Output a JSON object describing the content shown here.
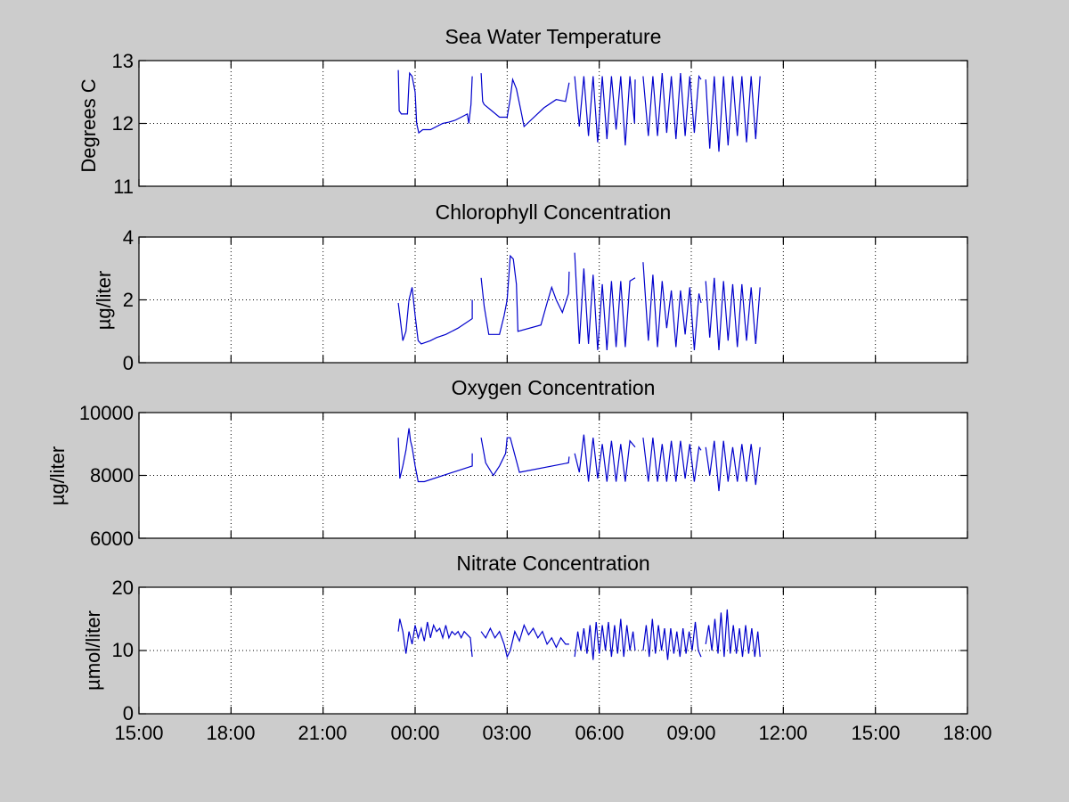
{
  "figure": {
    "background": "#cccccc",
    "axes_background": "#ffffff",
    "line_color": "#0000cc",
    "grid_color": "#000000"
  },
  "xaxis": {
    "tick_labels": [
      "15:00",
      "18:00",
      "21:00",
      "00:00",
      "03:00",
      "06:00",
      "09:00",
      "12:00",
      "15:00",
      "18:00"
    ],
    "tick_hours": [
      0,
      3,
      6,
      9,
      12,
      15,
      18,
      21,
      24,
      27
    ],
    "range_hours": [
      0,
      27
    ],
    "unit": "hours since 15:00"
  },
  "chart_data": [
    {
      "type": "line",
      "title": "Sea Water Temperature",
      "xlabel": "",
      "ylabel": "Degrees C",
      "ylim": [
        11,
        13
      ],
      "yticks": [
        "11",
        "12",
        "13"
      ],
      "ytick_values": [
        11,
        12,
        13
      ],
      "grid": true,
      "segments": [
        {
          "x": [
            8.45,
            8.48,
            8.55,
            8.75,
            8.8,
            8.82,
            8.9,
            9.0,
            9.05,
            9.12,
            9.25,
            9.3,
            9.5,
            9.9,
            10.1,
            10.3,
            10.5,
            10.7,
            10.75,
            10.82,
            10.86
          ],
          "y": [
            12.85,
            12.2,
            12.15,
            12.15,
            12.65,
            12.8,
            12.75,
            12.5,
            12.0,
            11.85,
            11.9,
            11.9,
            11.9,
            12.0,
            12.02,
            12.05,
            12.1,
            12.15,
            12.0,
            12.3,
            12.75
          ]
        },
        {
          "x": [
            11.15,
            11.2,
            11.25,
            11.5,
            11.75,
            12.0,
            12.1,
            12.18,
            12.3,
            12.45,
            12.55,
            13.2,
            13.6,
            13.9,
            14.02
          ],
          "y": [
            12.8,
            12.35,
            12.3,
            12.2,
            12.1,
            12.1,
            12.4,
            12.7,
            12.55,
            12.2,
            11.95,
            12.25,
            12.38,
            12.35,
            12.65
          ]
        },
        {
          "x": [
            14.2,
            14.35,
            14.5,
            14.65,
            14.8,
            14.95,
            15.1,
            15.25,
            15.4,
            15.55,
            15.7,
            15.85,
            16.0,
            16.15,
            16.17
          ],
          "y": [
            12.75,
            11.95,
            12.75,
            11.8,
            12.75,
            11.7,
            12.75,
            11.75,
            12.75,
            11.9,
            12.75,
            11.65,
            12.75,
            12.0,
            12.7
          ]
        },
        {
          "x": [
            16.43,
            16.6,
            16.75,
            16.9,
            17.05,
            17.2,
            17.35,
            17.5,
            17.65,
            17.8,
            17.95,
            18.1,
            18.25,
            18.32
          ],
          "y": [
            12.75,
            11.8,
            12.75,
            11.8,
            12.8,
            11.85,
            12.75,
            11.75,
            12.8,
            11.8,
            12.75,
            11.85,
            12.75,
            12.7
          ]
        },
        {
          "x": [
            18.47,
            18.6,
            18.75,
            18.9,
            19.05,
            19.2,
            19.35,
            19.5,
            19.65,
            19.8,
            19.95,
            20.1,
            20.24
          ],
          "y": [
            12.7,
            11.6,
            12.75,
            11.55,
            12.75,
            11.65,
            12.75,
            11.8,
            12.75,
            11.7,
            12.75,
            11.75,
            12.75
          ]
        }
      ]
    },
    {
      "type": "line",
      "title": "Chlorophyll Concentration",
      "xlabel": "",
      "ylabel": "µg/liter",
      "ylim": [
        0,
        4
      ],
      "yticks": [
        "0",
        "2",
        "4"
      ],
      "ytick_values": [
        0,
        2,
        4
      ],
      "grid": true,
      "segments": [
        {
          "x": [
            8.45,
            8.5,
            8.6,
            8.7,
            8.8,
            8.9,
            9.0,
            9.1,
            9.2,
            9.5,
            9.7,
            10.0,
            10.4,
            10.86,
            10.86
          ],
          "y": [
            1.9,
            1.5,
            0.7,
            1.0,
            2.0,
            2.4,
            1.5,
            0.7,
            0.6,
            0.7,
            0.8,
            0.9,
            1.1,
            1.4,
            2.0
          ]
        },
        {
          "x": [
            11.15,
            11.25,
            11.4,
            11.75,
            11.9,
            12.0,
            12.1,
            12.2,
            12.3,
            12.35,
            13.1,
            13.3,
            13.45,
            13.6,
            13.8,
            14.0,
            14.02
          ],
          "y": [
            2.7,
            1.8,
            0.9,
            0.9,
            1.5,
            2.0,
            3.4,
            3.3,
            2.5,
            1.0,
            1.2,
            1.9,
            2.4,
            2.0,
            1.6,
            2.2,
            2.9
          ]
        },
        {
          "x": [
            14.2,
            14.35,
            14.5,
            14.65,
            14.8,
            14.95,
            15.1,
            15.25,
            15.4,
            15.55,
            15.7,
            15.85,
            16.0,
            16.17
          ],
          "y": [
            3.5,
            0.6,
            3.0,
            0.6,
            2.8,
            0.4,
            2.5,
            0.4,
            2.6,
            0.5,
            2.6,
            0.5,
            2.6,
            2.7
          ]
        },
        {
          "x": [
            16.43,
            16.6,
            16.75,
            16.9,
            17.05,
            17.2,
            17.35,
            17.5,
            17.65,
            17.8,
            17.95,
            18.1,
            18.25,
            18.32
          ],
          "y": [
            3.2,
            0.7,
            2.8,
            0.5,
            2.6,
            1.1,
            2.3,
            0.5,
            2.3,
            0.9,
            2.4,
            0.4,
            2.2,
            1.9
          ]
        },
        {
          "x": [
            18.47,
            18.6,
            18.75,
            18.9,
            19.05,
            19.2,
            19.35,
            19.5,
            19.65,
            19.8,
            19.95,
            20.1,
            20.24
          ],
          "y": [
            2.6,
            0.8,
            2.7,
            0.4,
            2.6,
            0.7,
            2.5,
            0.5,
            2.5,
            0.7,
            2.4,
            0.6,
            2.4
          ]
        }
      ]
    },
    {
      "type": "line",
      "title": "Oxygen Concentration",
      "xlabel": "",
      "ylabel": "µg/liter",
      "ylim": [
        6000,
        10000
      ],
      "yticks": [
        "6000",
        "8000",
        "10000"
      ],
      "ytick_values": [
        6000,
        8000,
        10000
      ],
      "grid": true,
      "segments": [
        {
          "x": [
            8.45,
            8.5,
            8.6,
            8.7,
            8.8,
            8.85,
            8.9,
            9.0,
            9.1,
            9.3,
            10.86,
            10.86
          ],
          "y": [
            9200,
            7900,
            8300,
            8800,
            9500,
            9100,
            8900,
            8300,
            7800,
            7800,
            8300,
            8700
          ]
        },
        {
          "x": [
            11.15,
            11.3,
            11.55,
            11.75,
            11.95,
            12.0,
            12.1,
            12.4,
            14.0,
            14.02
          ],
          "y": [
            9200,
            8400,
            8000,
            8300,
            8700,
            9200,
            9200,
            8100,
            8400,
            8600
          ]
        },
        {
          "x": [
            14.2,
            14.35,
            14.5,
            14.65,
            14.8,
            14.95,
            15.1,
            15.25,
            15.4,
            15.55,
            15.7,
            15.85,
            16.0,
            16.17
          ],
          "y": [
            8700,
            8100,
            9300,
            7800,
            9200,
            7900,
            9000,
            7800,
            9100,
            7800,
            9000,
            7800,
            9100,
            8900
          ]
        },
        {
          "x": [
            16.43,
            16.6,
            16.75,
            16.9,
            17.05,
            17.2,
            17.35,
            17.5,
            17.65,
            17.8,
            17.95,
            18.1,
            18.25,
            18.32
          ],
          "y": [
            9200,
            7800,
            9200,
            7800,
            9000,
            7800,
            9100,
            7800,
            9100,
            7900,
            9000,
            7800,
            8900,
            8800
          ]
        },
        {
          "x": [
            18.47,
            18.6,
            18.75,
            18.9,
            19.05,
            19.2,
            19.35,
            19.5,
            19.65,
            19.8,
            19.95,
            20.1,
            20.24
          ],
          "y": [
            8900,
            8000,
            9100,
            7500,
            9100,
            7800,
            8900,
            7800,
            9000,
            7800,
            9000,
            7700,
            8900
          ]
        }
      ]
    },
    {
      "type": "line",
      "title": "Nitrate Concentration",
      "xlabel": "",
      "ylabel": "µmol/liter",
      "ylim": [
        0,
        20
      ],
      "yticks": [
        "0",
        "10",
        "20"
      ],
      "ytick_values": [
        0,
        10,
        20
      ],
      "grid": true,
      "segments": [
        {
          "x": [
            8.45,
            8.5,
            8.6,
            8.7,
            8.8,
            8.9,
            9.0,
            9.1,
            9.2,
            9.3,
            9.4,
            9.5,
            9.6,
            9.7,
            9.8,
            9.9,
            10.0,
            10.1,
            10.2,
            10.3,
            10.4,
            10.5,
            10.6,
            10.7,
            10.8,
            10.86
          ],
          "y": [
            13,
            15,
            13,
            9.5,
            13,
            11,
            14,
            12,
            13.5,
            11.5,
            14.5,
            12,
            14,
            13,
            13.5,
            12,
            14,
            12,
            13,
            12.5,
            13,
            12,
            13,
            12.5,
            12,
            9
          ]
        },
        {
          "x": [
            11.15,
            11.3,
            11.45,
            11.6,
            11.75,
            11.9,
            12.0,
            12.1,
            12.25,
            12.4,
            12.55,
            12.7,
            12.85,
            13.0,
            13.15,
            13.3,
            13.45,
            13.6,
            13.75,
            13.9,
            14.02
          ],
          "y": [
            13,
            12,
            13.5,
            12,
            13,
            11,
            9,
            10,
            13,
            11.5,
            14,
            12.5,
            13.5,
            12,
            13,
            11,
            12,
            10.5,
            12,
            11,
            11
          ]
        },
        {
          "x": [
            14.2,
            14.3,
            14.4,
            14.5,
            14.6,
            14.7,
            14.8,
            14.9,
            15.0,
            15.1,
            15.2,
            15.3,
            15.4,
            15.5,
            15.6,
            15.7,
            15.8,
            15.9,
            16.0,
            16.1,
            16.17
          ],
          "y": [
            9,
            13,
            10,
            13.5,
            9.5,
            14,
            8.5,
            14.5,
            9.5,
            14,
            10,
            14.5,
            9,
            14,
            9.5,
            15,
            9,
            14,
            10,
            13,
            10
          ]
        },
        {
          "x": [
            16.43,
            16.53,
            16.63,
            16.73,
            16.83,
            16.93,
            17.03,
            17.13,
            17.23,
            17.33,
            17.43,
            17.53,
            17.63,
            17.73,
            17.83,
            17.93,
            18.03,
            18.13,
            18.23,
            18.32
          ],
          "y": [
            10,
            14,
            9,
            15,
            9.5,
            14,
            10,
            13.5,
            8.5,
            13.5,
            9.5,
            13,
            9,
            13.5,
            9.5,
            13,
            10,
            14.5,
            10,
            9
          ]
        },
        {
          "x": [
            18.47,
            18.57,
            18.67,
            18.77,
            18.87,
            18.97,
            19.07,
            19.17,
            19.27,
            19.37,
            19.47,
            19.57,
            19.67,
            19.77,
            19.87,
            19.97,
            20.07,
            20.17,
            20.24
          ],
          "y": [
            11,
            14,
            10,
            15,
            9.5,
            16,
            9,
            16.5,
            9.5,
            14,
            9.5,
            13.5,
            9,
            14,
            9.5,
            13.5,
            9,
            13,
            9
          ]
        }
      ]
    }
  ]
}
